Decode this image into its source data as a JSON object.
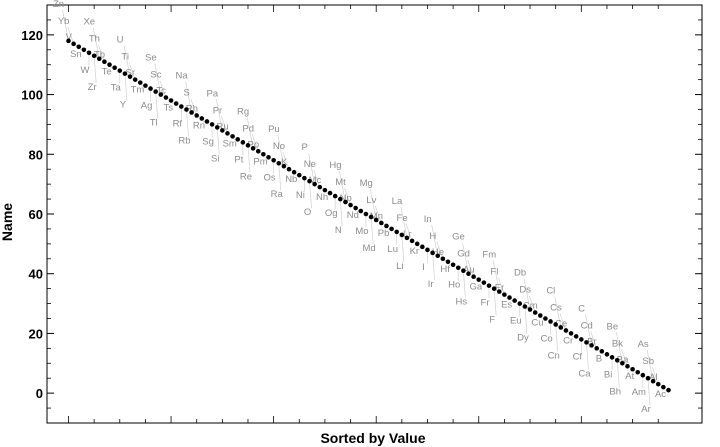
{
  "chart_data": {
    "type": "scatter",
    "title": "",
    "xlabel": "Sorted by Value",
    "ylabel": "Name",
    "ylim": [
      -10,
      130
    ],
    "xlim": [
      0,
      119
    ],
    "y_ticks": [
      0,
      20,
      40,
      60,
      80,
      100,
      120
    ],
    "y_tick_labels": [
      "0",
      "20",
      "40",
      "60",
      "80",
      "100",
      "120"
    ],
    "x_ticks_labeled": false,
    "grid": false,
    "legend": "none",
    "point_color": "#000000",
    "label_color": "#8c8c8c",
    "leader_color": "#d0d0d0",
    "labels": [
      "Zn",
      "Yb",
      "V",
      "Sn",
      "W",
      "Zr",
      "Xe",
      "Th",
      "Tb",
      "Te",
      "Ta",
      "Y",
      "U",
      "Ti",
      "Sr",
      "Tm",
      "Ag",
      "Tl",
      "Se",
      "Sc",
      "Tc",
      "Ts",
      "Rf",
      "Rb",
      "Na",
      "S",
      "Rh",
      "Rn",
      "Sg",
      "Si",
      "Pa",
      "Pr",
      "Ru",
      "Sm",
      "Pt",
      "Re",
      "Rg",
      "Pd",
      "Po",
      "Pm",
      "Os",
      "Ra",
      "Pu",
      "No",
      "K",
      "Nb",
      "Ni",
      "O",
      "P",
      "Ne",
      "Mc",
      "Nh",
      "Og",
      "N",
      "Hg",
      "Mt",
      "Np",
      "Nd",
      "Mo",
      "Md",
      "Mg",
      "Lv",
      "Mn",
      "Pb",
      "Lu",
      "Li",
      "La",
      "Fe",
      "Lr",
      "Kr",
      "I",
      "Ir",
      "In",
      "H",
      "He",
      "Hf",
      "Ho",
      "Hs",
      "Ge",
      "Gd",
      "Au",
      "Ga",
      "Fr",
      "F",
      "Fm",
      "Fl",
      "Er",
      "Es",
      "Eu",
      "Dy",
      "Db",
      "Ds",
      "Cm",
      "Cu",
      "Co",
      "Cn",
      "Cl",
      "Cs",
      "Ce",
      "Cr",
      "Cf",
      "Ca",
      "C",
      "Cd",
      "Br",
      "B",
      "Bi",
      "Bh",
      "Be",
      "Bk",
      "Ba",
      "At",
      "Am",
      "Ar",
      "As",
      "Sb",
      "Al",
      "Ac"
    ],
    "values": [
      118,
      117,
      116,
      115,
      114,
      113,
      112,
      111,
      110,
      109,
      108,
      107,
      106,
      105,
      104,
      103,
      102,
      101,
      100,
      99,
      98,
      97,
      96,
      95,
      94,
      93,
      92,
      91,
      90,
      89,
      88,
      87,
      86,
      85,
      84,
      83,
      82,
      81,
      80,
      79,
      78,
      77,
      76,
      75,
      74,
      73,
      72,
      71,
      70,
      69,
      68,
      67,
      66,
      65,
      64,
      63,
      62,
      61,
      60,
      59,
      58,
      57,
      56,
      55,
      54,
      53,
      52,
      51,
      50,
      49,
      48,
      47,
      46,
      45,
      44,
      43,
      42,
      41,
      40,
      39,
      38,
      37,
      36,
      35,
      34,
      33,
      32,
      31,
      30,
      29,
      28,
      27,
      26,
      25,
      24,
      23,
      22,
      21,
      20,
      19,
      18,
      17,
      16,
      15,
      14,
      13,
      12,
      11,
      10,
      9,
      8,
      7,
      6,
      5,
      4,
      3,
      2,
      1
    ]
  }
}
